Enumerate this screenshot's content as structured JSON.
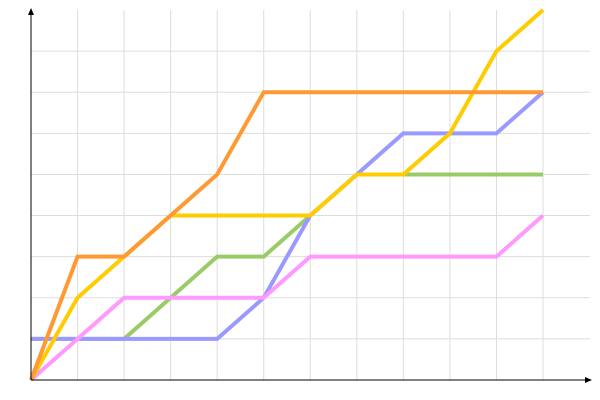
{
  "chart_data": {
    "type": "line",
    "title": "",
    "xlabel": "",
    "ylabel": "",
    "x": [
      0,
      1,
      2,
      3,
      4,
      5,
      6,
      7,
      8,
      9,
      10,
      11
    ],
    "xlim": [
      0,
      11
    ],
    "ylim": [
      0,
      9
    ],
    "grid": true,
    "legend": "none",
    "series": [
      {
        "color": "#99cc66",
        "values": [
          1,
          1,
          1,
          2,
          3,
          3,
          4,
          5,
          5,
          5,
          5,
          5
        ]
      },
      {
        "color": "#9999ff",
        "values": [
          1,
          1,
          1,
          1,
          1,
          2,
          4,
          5,
          6,
          6,
          6,
          7
        ]
      },
      {
        "color": "#ff99ff",
        "values": [
          0,
          1,
          2,
          2,
          2,
          2,
          3,
          3,
          3,
          3,
          3,
          4
        ]
      },
      {
        "color": "#ffcc00",
        "values": [
          0,
          2,
          3,
          4,
          4,
          4,
          4,
          5,
          5,
          6,
          8,
          9
        ]
      },
      {
        "color": "#ff9933",
        "values": [
          0,
          3,
          3,
          4,
          5,
          7,
          7,
          7,
          7,
          7,
          7,
          7
        ]
      }
    ]
  }
}
